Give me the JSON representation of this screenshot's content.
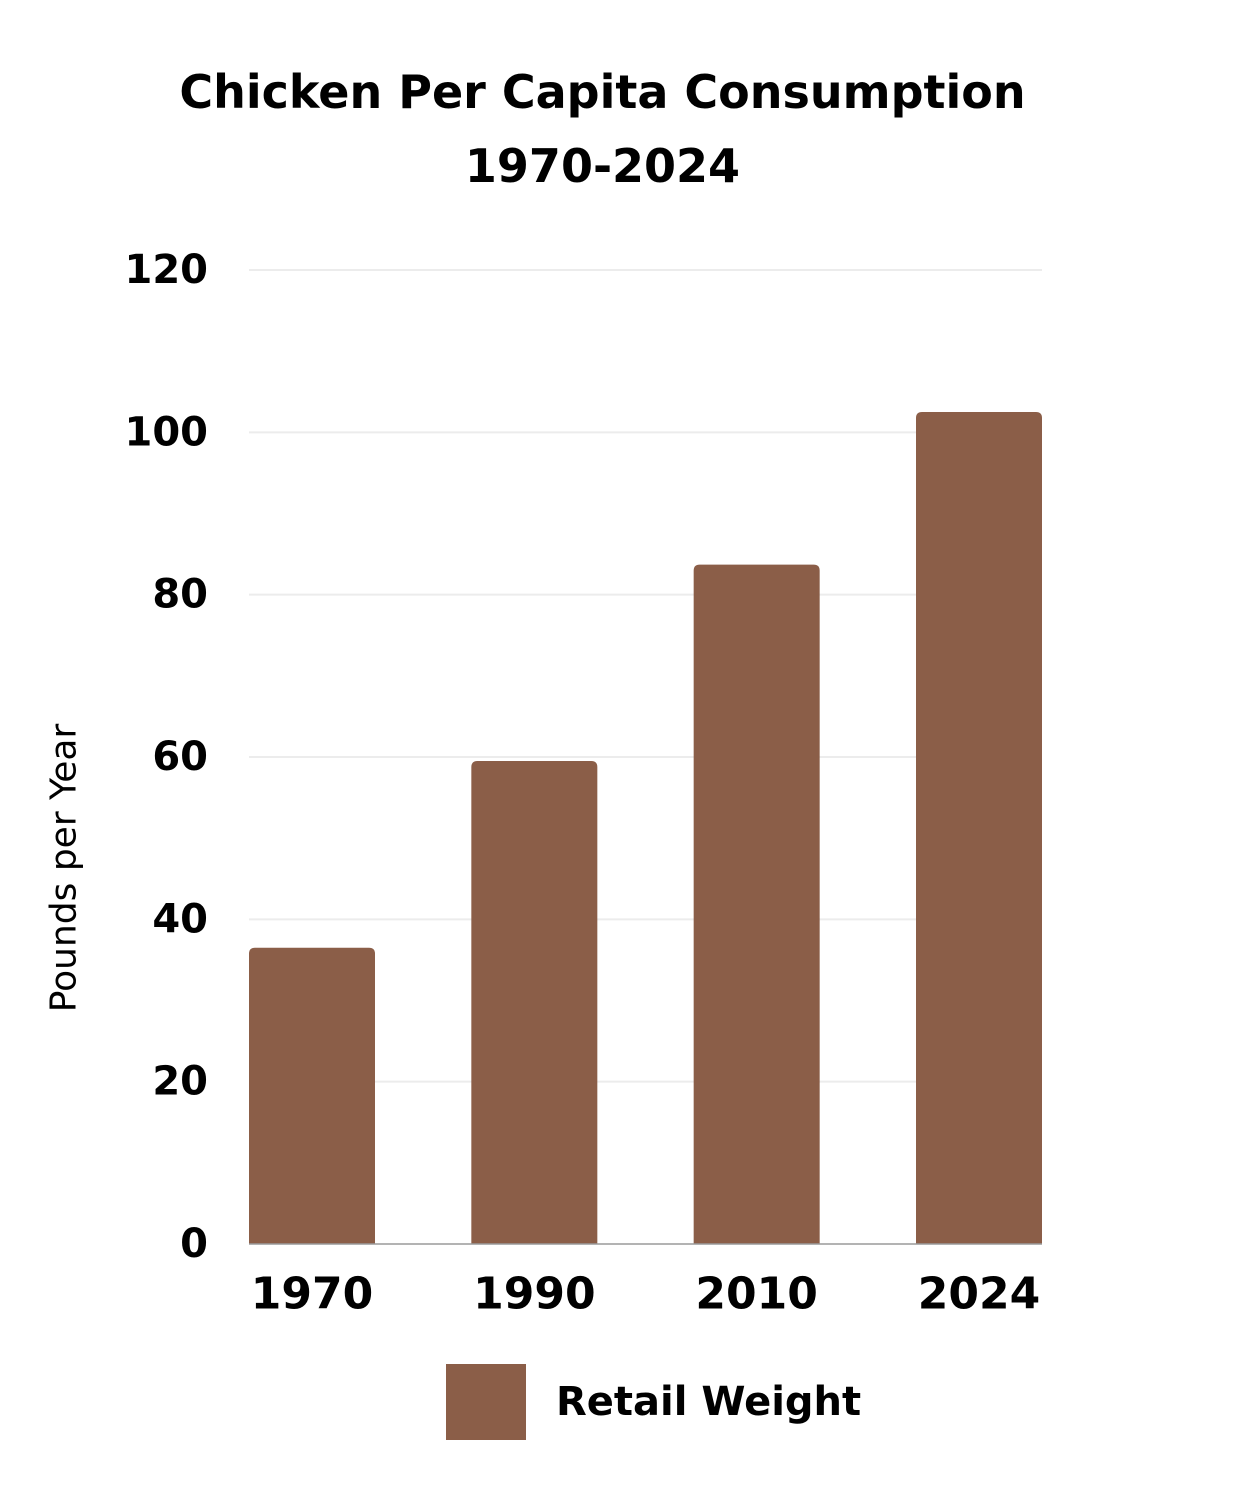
{
  "chart_data": {
    "type": "bar",
    "title_lines": [
      "Chicken Per Capita Consumption",
      "1970-2024"
    ],
    "xlabel": "",
    "ylabel": "Pounds per Year",
    "categories": [
      "1970",
      "1990",
      "2010",
      "2024"
    ],
    "series": [
      {
        "name": "Retail Weight",
        "values": [
          36.5,
          59.5,
          83.7,
          102.5
        ]
      }
    ],
    "ylim": [
      0,
      120
    ],
    "yticks": [
      0,
      20,
      40,
      60,
      80,
      100,
      120
    ],
    "grid": true,
    "legend_position": "bottom",
    "colors": {
      "bar": "#8B5E48",
      "grid": "#ececec",
      "axis": "#9a9a9a"
    }
  }
}
